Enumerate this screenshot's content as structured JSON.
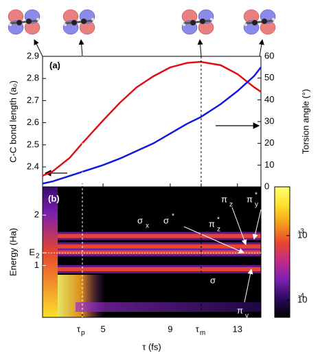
{
  "chart_data": [
    {
      "type": "line",
      "panel_label": "(a)",
      "y_label": "C-C bond length (a₀)",
      "y2_label": "Torsion angle (°)",
      "x": [
        1.4,
        2,
        3,
        3.8,
        5,
        6,
        7,
        8,
        9,
        10,
        10.8,
        12,
        13,
        14,
        14.4
      ],
      "series": [
        {
          "color": "#e01010",
          "values": [
            2.36,
            2.38,
            2.44,
            2.51,
            2.61,
            2.69,
            2.76,
            2.81,
            2.85,
            2.87,
            2.875,
            2.86,
            2.82,
            2.76,
            2.74
          ]
        },
        {
          "color": "#1018e0",
          "axis": "y2",
          "values": [
            1.5,
            2.5,
            5,
            7,
            10,
            13,
            16.5,
            20,
            24.5,
            29,
            32,
            38,
            44,
            51,
            55
          ]
        }
      ],
      "xlim": [
        1.4,
        14.4
      ],
      "ylim": [
        2.31,
        2.9
      ],
      "yticks": [
        2.4,
        2.5,
        2.6,
        2.7,
        2.8,
        2.9
      ],
      "y2lim": [
        0,
        60
      ],
      "y2ticks": [
        0,
        10,
        20,
        30,
        40,
        50,
        60
      ]
    },
    {
      "type": "heatmap",
      "panel_label": "(b)",
      "y_label": "Energy (Ha)",
      "x_label": "τ (fs)",
      "xlim": [
        1.4,
        14.4
      ],
      "xticks": [
        {
          "value": 3.77,
          "label": "τ",
          "sub": "p"
        },
        5,
        9,
        {
          "value": 10.84,
          "label": "τ",
          "sub": "m"
        },
        13
      ],
      "ylim": [
        0.49,
        2.95
      ],
      "log_y": true,
      "yticks": [
        1,
        {
          "value": 1.19,
          "label": "E",
          "sub": "2"
        },
        2
      ],
      "band_energies": [
        0.95,
        1.2,
        1.3,
        1.5
      ],
      "clim": [
        5.4e-05,
        0.0057
      ],
      "cticks": [
        {
          "value": 0.001,
          "label": "10",
          "sup": "-3"
        },
        {
          "value": 0.0001,
          "label": "10",
          "sup": "-4"
        }
      ],
      "colormap": [
        "#000000",
        "#2a0a5e",
        "#7a1fb0",
        "#c12a8a",
        "#e8452e",
        "#f59a1a",
        "#fde02a",
        "#ffff70"
      ],
      "annotations": [
        {
          "text": "σ",
          "sub": "x"
        },
        {
          "text": "σ",
          "sup": "*"
        },
        {
          "text": "π",
          "sub": "z"
        },
        {
          "text": "π",
          "sub": "y",
          "sup": "*"
        },
        {
          "text": "π",
          "sub": "z",
          "sup": "*"
        },
        {
          "text": "σ"
        },
        {
          "text": "π",
          "sub": "y"
        }
      ]
    }
  ]
}
